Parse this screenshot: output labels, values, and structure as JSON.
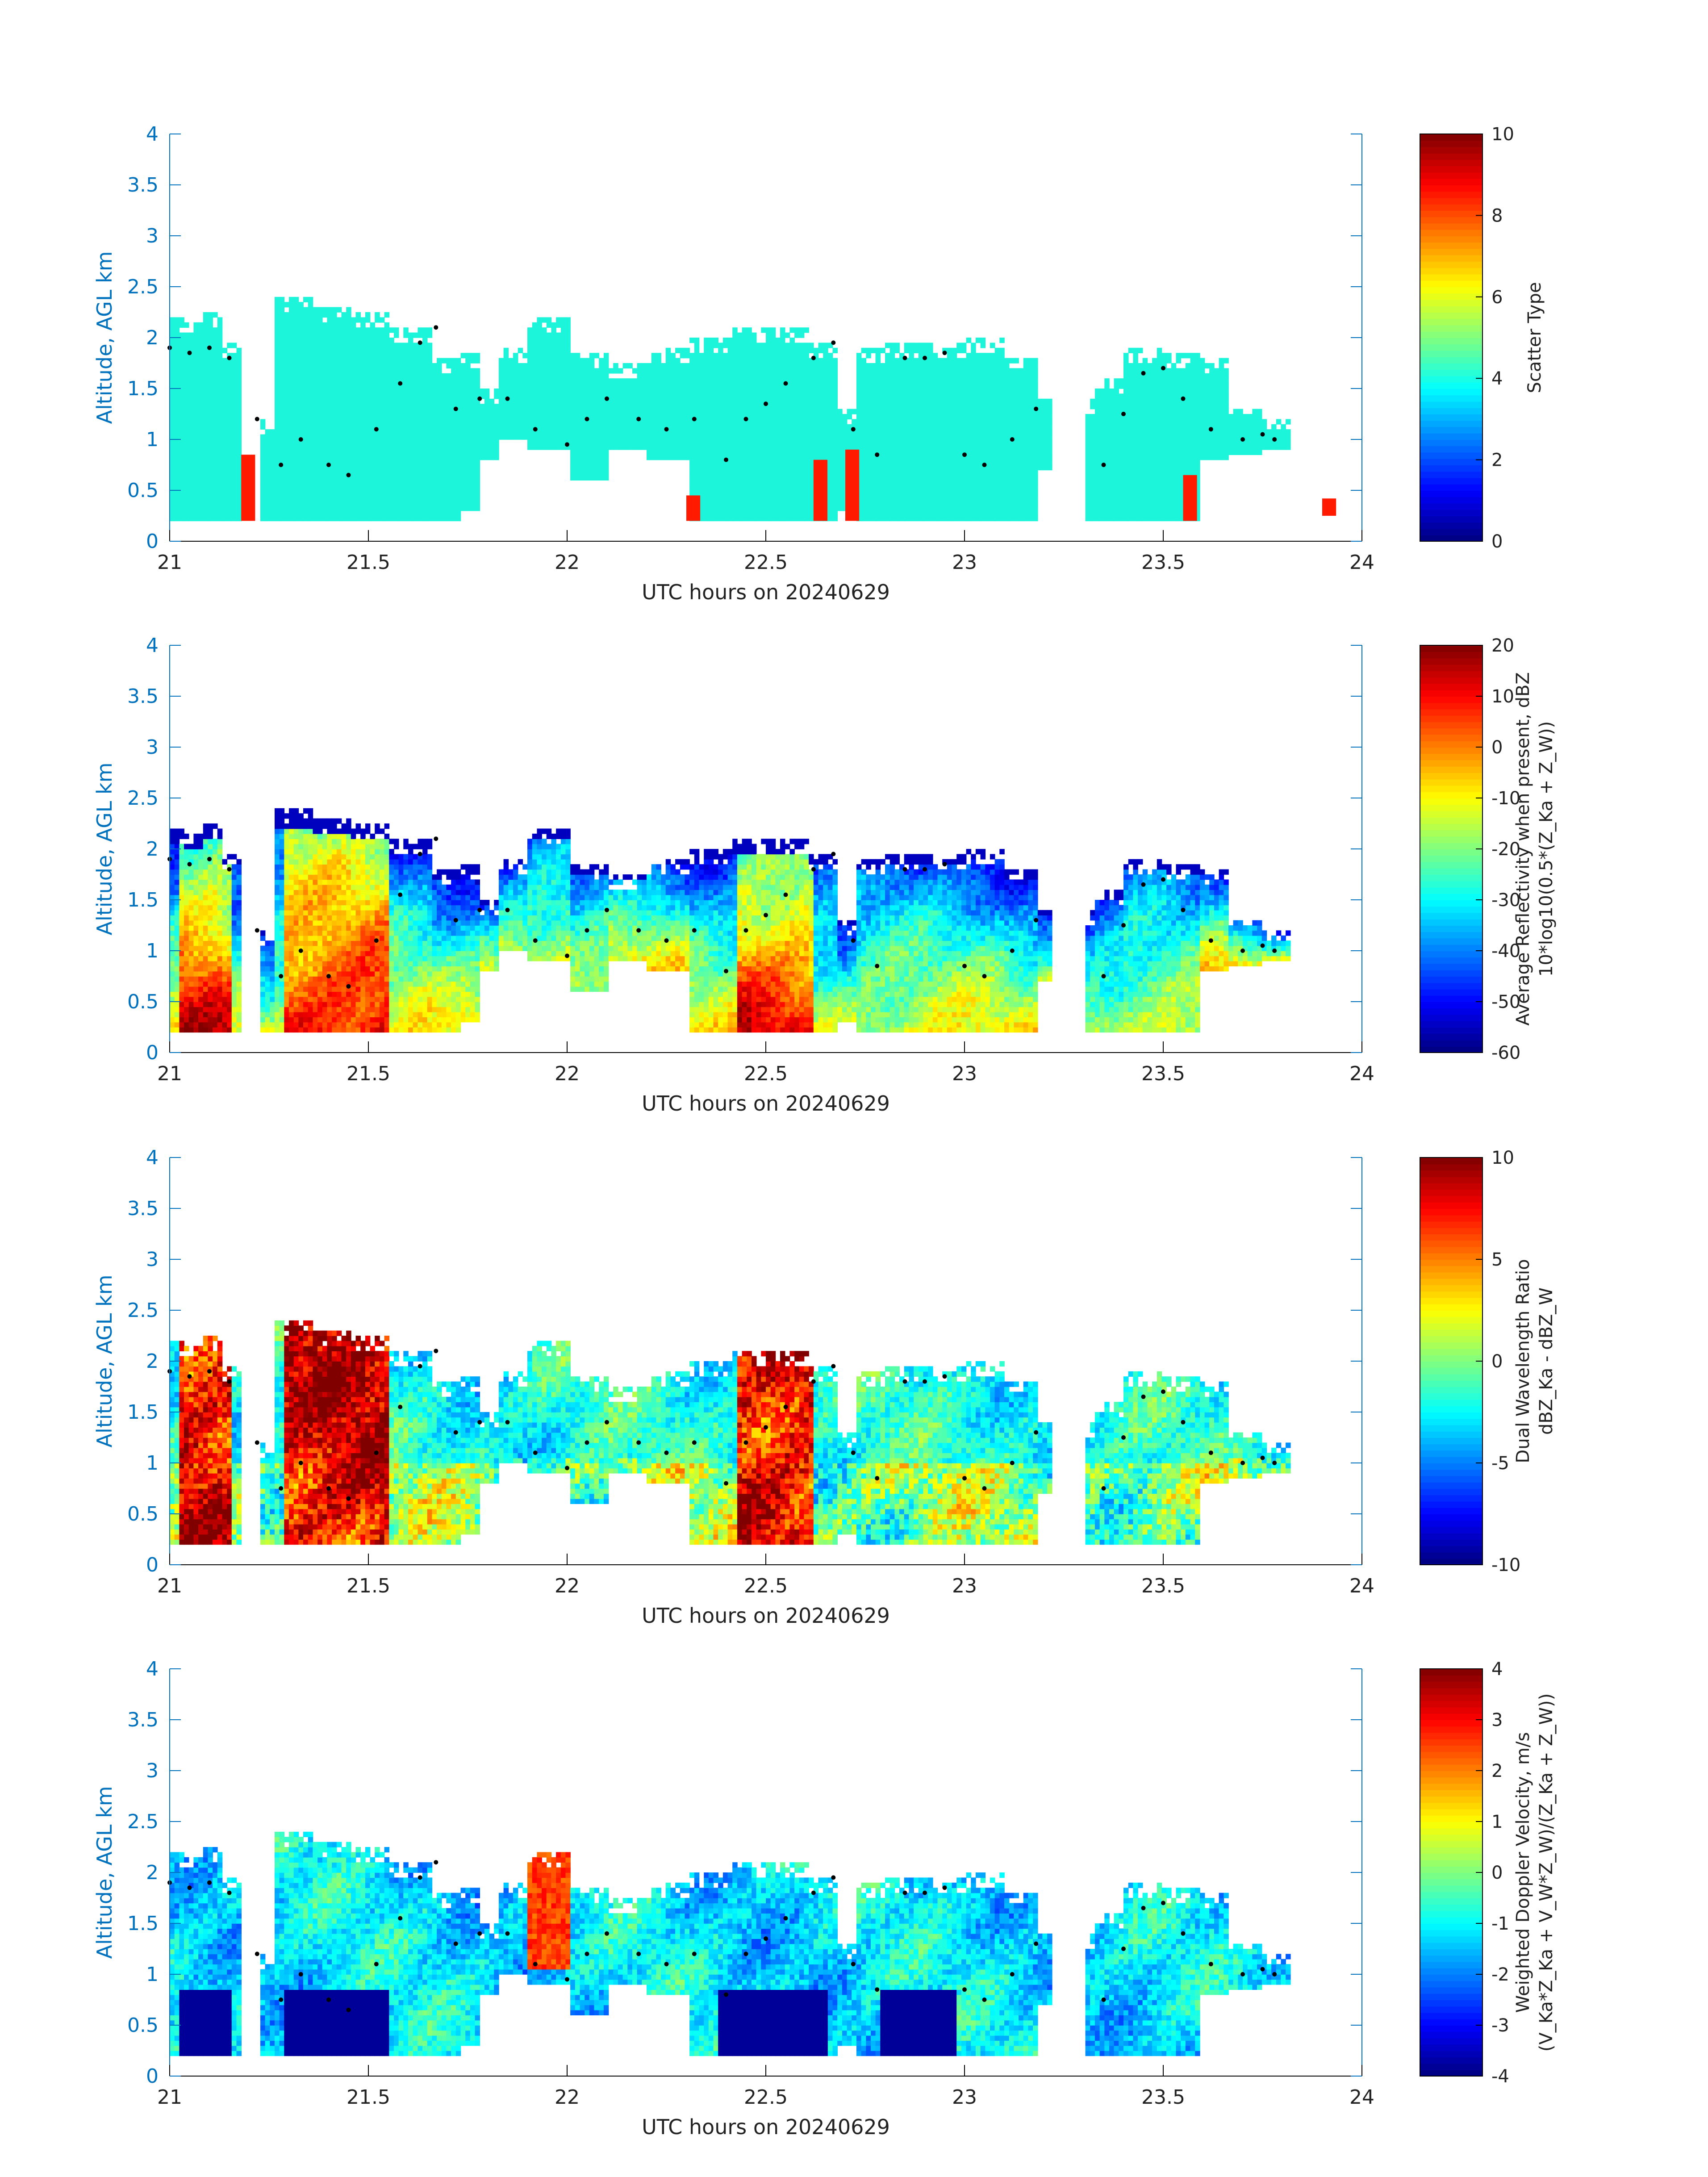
{
  "figure": {
    "axis_color": "#0072BD",
    "frame_color": "#000000",
    "cloud_color_scatter": "#1DF5DA",
    "marker_color": "#000000"
  },
  "chart_data": [
    {
      "type": "heatmap",
      "id": "scatter-type",
      "xlabel": "UTC hours on 20240629",
      "ylabel": "Altitude, AGL km",
      "xlim": [
        21,
        24
      ],
      "ylim": [
        0,
        4
      ],
      "x_ticks": [
        "21",
        "21.5",
        "22",
        "22.5",
        "23",
        "23.5",
        "24"
      ],
      "y_ticks": [
        "0",
        "0.5",
        "1",
        "1.5",
        "2",
        "2.5",
        "3",
        "3.5",
        "4"
      ],
      "colorbar": {
        "label_lines": [
          "Scatter Type"
        ],
        "clim": [
          0,
          10
        ],
        "ticks": [
          "0",
          "2",
          "4",
          "6",
          "8",
          "10"
        ],
        "colormap": "jet"
      },
      "dominant_value": 4,
      "notable_values": [
        {
          "value": 8.5,
          "description": "orange cells near ground around 21.2, 22.3, 22.6–22.7, 23.55, 23.9"
        }
      ]
    },
    {
      "type": "heatmap",
      "id": "reflectivity",
      "xlabel": "UTC hours on 20240629",
      "ylabel": "Altitude, AGL km",
      "xlim": [
        21,
        24
      ],
      "ylim": [
        0,
        4
      ],
      "x_ticks": [
        "21",
        "21.5",
        "22",
        "22.5",
        "23",
        "23.5",
        "24"
      ],
      "y_ticks": [
        "0",
        "0.5",
        "1",
        "1.5",
        "2",
        "2.5",
        "3",
        "3.5",
        "4"
      ],
      "colorbar": {
        "label_lines": [
          "Average Reflectivity when present, dBZ",
          "10*log10(0.5*(Z_Ka + Z_W))"
        ],
        "clim": [
          -60,
          20
        ],
        "ticks": [
          "-60",
          "-50",
          "-40",
          "-30",
          "-20",
          "-10",
          "0",
          "10",
          "20"
        ],
        "colormap": "jet"
      }
    },
    {
      "type": "heatmap",
      "id": "dual-wavelength-ratio",
      "xlabel": "UTC hours on 20240629",
      "ylabel": "Altitude, AGL km",
      "xlim": [
        21,
        24
      ],
      "ylim": [
        0,
        4
      ],
      "x_ticks": [
        "21",
        "21.5",
        "22",
        "22.5",
        "23",
        "23.5",
        "24"
      ],
      "y_ticks": [
        "0",
        "0.5",
        "1",
        "1.5",
        "2",
        "2.5",
        "3",
        "3.5",
        "4"
      ],
      "colorbar": {
        "label_lines": [
          "Dual Wavelength Ratio",
          "dBZ_Ka - dBZ_W"
        ],
        "clim": [
          -10,
          10
        ],
        "ticks": [
          "-10",
          "-5",
          "0",
          "5",
          "10"
        ],
        "colormap": "jet"
      }
    },
    {
      "type": "heatmap",
      "id": "doppler-velocity",
      "xlabel": "UTC hours on 20240629",
      "ylabel": "Altitude, AGL km",
      "xlim": [
        21,
        24
      ],
      "ylim": [
        0,
        4
      ],
      "x_ticks": [
        "21",
        "21.5",
        "22",
        "22.5",
        "23",
        "23.5",
        "24"
      ],
      "y_ticks": [
        "0",
        "0.5",
        "1",
        "1.5",
        "2",
        "2.5",
        "3",
        "3.5",
        "4"
      ],
      "colorbar": {
        "label_lines": [
          "Weighted Doppler Velocity, m/s",
          "(V_Ka*Z_Ka + V_W*Z_W)/(Z_Ka + Z_W))"
        ],
        "clim": [
          -4,
          4
        ],
        "ticks": [
          "-4",
          "-3",
          "-2",
          "-1",
          "0",
          "1",
          "2",
          "3",
          "4"
        ],
        "colormap": "jet"
      }
    }
  ],
  "cloud_envelope": [
    [
      21.0,
      0.2,
      2.2
    ],
    [
      21.05,
      0.2,
      2.15
    ],
    [
      21.1,
      0.2,
      2.25
    ],
    [
      21.15,
      0.2,
      1.95
    ],
    [
      21.22,
      0.2,
      1.2
    ],
    [
      21.3,
      0.2,
      2.35
    ],
    [
      21.4,
      0.2,
      2.3
    ],
    [
      21.5,
      0.2,
      2.25
    ],
    [
      21.6,
      0.2,
      2.1
    ],
    [
      21.7,
      0.2,
      1.8
    ],
    [
      21.75,
      0.3,
      1.85
    ],
    [
      21.8,
      0.8,
      1.5
    ],
    [
      21.85,
      1.0,
      1.9
    ],
    [
      21.95,
      0.9,
      2.2
    ],
    [
      22.05,
      0.6,
      1.85
    ],
    [
      22.15,
      0.9,
      1.75
    ],
    [
      22.25,
      0.8,
      1.9
    ],
    [
      22.35,
      0.2,
      2.0
    ],
    [
      22.45,
      0.2,
      2.1
    ],
    [
      22.55,
      0.2,
      2.1
    ],
    [
      22.65,
      0.2,
      1.95
    ],
    [
      22.7,
      0.3,
      1.3
    ],
    [
      22.75,
      0.2,
      1.9
    ],
    [
      22.85,
      0.2,
      1.95
    ],
    [
      22.95,
      0.2,
      1.95
    ],
    [
      23.05,
      0.2,
      2.0
    ],
    [
      23.15,
      0.2,
      1.8
    ],
    [
      23.2,
      0.7,
      1.4
    ],
    [
      23.3,
      0.2,
      1.4
    ],
    [
      23.35,
      0.2,
      1.6
    ],
    [
      23.45,
      0.2,
      1.9
    ],
    [
      23.55,
      0.2,
      1.85
    ],
    [
      23.62,
      0.8,
      1.8
    ],
    [
      23.7,
      0.85,
      1.3
    ],
    [
      23.78,
      0.9,
      1.2
    ]
  ],
  "marker_points": [
    [
      21.0,
      1.9
    ],
    [
      21.05,
      1.85
    ],
    [
      21.1,
      1.9
    ],
    [
      21.15,
      1.8
    ],
    [
      21.22,
      1.2
    ],
    [
      21.28,
      0.75
    ],
    [
      21.33,
      1.0
    ],
    [
      21.4,
      0.75
    ],
    [
      21.45,
      0.65
    ],
    [
      21.52,
      1.1
    ],
    [
      21.58,
      1.55
    ],
    [
      21.63,
      1.95
    ],
    [
      21.67,
      2.1
    ],
    [
      21.72,
      1.3
    ],
    [
      21.78,
      1.4
    ],
    [
      21.85,
      1.4
    ],
    [
      21.92,
      1.1
    ],
    [
      22.0,
      0.95
    ],
    [
      22.05,
      1.2
    ],
    [
      22.1,
      1.4
    ],
    [
      22.18,
      1.2
    ],
    [
      22.25,
      1.1
    ],
    [
      22.32,
      1.2
    ],
    [
      22.4,
      0.8
    ],
    [
      22.45,
      1.2
    ],
    [
      22.5,
      1.35
    ],
    [
      22.55,
      1.55
    ],
    [
      22.62,
      1.8
    ],
    [
      22.67,
      1.95
    ],
    [
      22.72,
      1.1
    ],
    [
      22.78,
      0.85
    ],
    [
      22.85,
      1.8
    ],
    [
      22.9,
      1.8
    ],
    [
      22.95,
      1.85
    ],
    [
      23.0,
      0.85
    ],
    [
      23.05,
      0.75
    ],
    [
      23.12,
      1.0
    ],
    [
      23.18,
      1.3
    ],
    [
      23.35,
      0.75
    ],
    [
      23.4,
      1.25
    ],
    [
      23.45,
      1.65
    ],
    [
      23.5,
      1.7
    ],
    [
      23.55,
      1.4
    ],
    [
      23.62,
      1.1
    ],
    [
      23.7,
      1.0
    ],
    [
      23.75,
      1.05
    ],
    [
      23.78,
      1.0
    ]
  ]
}
